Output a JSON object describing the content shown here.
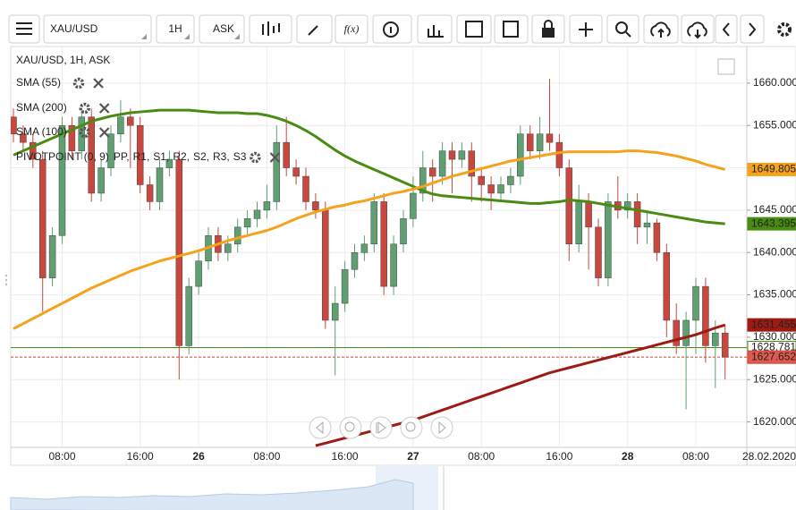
{
  "toolbar": {
    "symbol": "XAU/USD",
    "interval": "1H",
    "price_type": "ASK",
    "function_button": "f(x)"
  },
  "chart_data": {
    "type": "candlestick",
    "title": "XAU/USD, 1H, ASK",
    "categories": [
      null,
      null,
      null,
      null,
      null,
      "08:00",
      null,
      null,
      null,
      null,
      null,
      null,
      null,
      "16:00",
      null,
      null,
      null,
      null,
      null,
      "26",
      null,
      null,
      null,
      null,
      null,
      null,
      "08:00",
      null,
      null,
      null,
      null,
      null,
      null,
      null,
      "16:00",
      null,
      null,
      null,
      null,
      null,
      null,
      "27",
      null,
      null,
      null,
      null,
      null,
      null,
      "08:00",
      null,
      null,
      null,
      null,
      null,
      null,
      null,
      "16:00",
      null,
      null,
      null,
      null,
      null,
      null,
      "28",
      null,
      null,
      null,
      null,
      null,
      null,
      "08:00",
      null,
      null,
      null
    ],
    "date_label": "28.02.2020",
    "open": [
      1656,
      1654,
      1653,
      1651,
      1637,
      1642,
      1655,
      1652,
      1656,
      1647,
      1650,
      1654,
      1656,
      1655,
      1648,
      1646,
      1650,
      1651,
      1629,
      1636,
      1639,
      1642,
      1640,
      1641,
      1643,
      1644,
      1645,
      1646,
      1653,
      1650,
      1649,
      1646,
      1645,
      1632,
      1634,
      1638,
      1640,
      1641,
      1646,
      1636,
      1641,
      1644,
      1647,
      1650,
      1649,
      1652,
      1651,
      1652,
      1649,
      1648,
      1647,
      1648,
      1649,
      1654,
      1652,
      1654,
      1653,
      1650,
      1641,
      1646,
      1643,
      1637,
      1646,
      1645,
      1646,
      1643,
      1643.5,
      1640,
      1632,
      1629,
      1632,
      1636,
      1629,
      1630.5
    ],
    "high": [
      1657,
      1655,
      1654,
      1652,
      1643,
      1656,
      1656,
      1657,
      1657,
      1651,
      1655,
      1658,
      1657,
      1656,
      1649,
      1651,
      1652,
      1652,
      1637,
      1640,
      1643,
      1643,
      1642,
      1644,
      1645,
      1646,
      1648,
      1655,
      1656,
      1651,
      1650,
      1647,
      1646,
      1636,
      1639,
      1641,
      1642,
      1647,
      1647,
      1642,
      1645,
      1649,
      1652,
      1651,
      1653,
      1653,
      1653,
      1653,
      1650,
      1649,
      1649,
      1650,
      1655,
      1655,
      1656,
      1660.5,
      1654,
      1651,
      1648,
      1647,
      1644,
      1647,
      1649,
      1647,
      1647,
      1645,
      1644,
      1641,
      1634,
      1633,
      1637,
      1637,
      1632,
      1631.5
    ],
    "low": [
      1653,
      1652,
      1650,
      1633,
      1636,
      1641,
      1651,
      1651,
      1646,
      1646,
      1649,
      1653,
      1650,
      1647,
      1645,
      1645,
      1649,
      1625,
      1628,
      1635,
      1638,
      1639,
      1639,
      1640,
      1642,
      1643,
      1644,
      1645,
      1649,
      1648,
      1645,
      1644,
      1631,
      1625.5,
      1633,
      1637,
      1639,
      1640,
      1635,
      1635,
      1640,
      1643,
      1646,
      1646,
      1648,
      1647,
      1650,
      1646,
      1646,
      1645,
      1646,
      1647,
      1648,
      1651,
      1651,
      1652,
      1649,
      1639,
      1640,
      1638,
      1636,
      1636,
      1644,
      1644,
      1641,
      1641,
      1639,
      1630,
      1628,
      1621.5,
      1628,
      1627,
      1624,
      1625
    ],
    "close": [
      1654,
      1653,
      1651,
      1637,
      1642,
      1655,
      1652,
      1656,
      1647,
      1650,
      1654,
      1656,
      1655,
      1648,
      1646,
      1650,
      1651,
      1629,
      1636,
      1639,
      1642,
      1640,
      1641,
      1643,
      1644,
      1645,
      1646,
      1653,
      1650,
      1649,
      1646,
      1645,
      1632,
      1634,
      1638,
      1640,
      1641,
      1646,
      1636,
      1641,
      1644,
      1647,
      1650,
      1649,
      1652,
      1651,
      1652,
      1649,
      1648,
      1647,
      1648,
      1649,
      1654,
      1652,
      1654,
      1653,
      1650,
      1641,
      1646,
      1643,
      1637,
      1646,
      1645,
      1646,
      1643,
      1643.5,
      1640,
      1632,
      1629,
      1632,
      1636,
      1629,
      1630.5,
      1627.652
    ],
    "up_color": "#5f9f72",
    "down_color": "#c8473e",
    "overlays": [
      {
        "name": "SMA (55)",
        "color": "#4a8c12",
        "values": [
          1651.5,
          1652,
          1652.5,
          1653,
          1653.5,
          1654,
          1654.5,
          1655,
          1655.5,
          1655.8,
          1656.1,
          1656.3,
          1656.5,
          1656.6,
          1656.7,
          1656.8,
          1656.8,
          1656.8,
          1656.8,
          1656.7,
          1656.6,
          1656.5,
          1656.5,
          1656.5,
          1656.4,
          1656.4,
          1656.2,
          1655.9,
          1655.5,
          1655,
          1654.4,
          1653.7,
          1652.9,
          1652.1,
          1651.4,
          1650.8,
          1650.3,
          1649.8,
          1649.3,
          1648.8,
          1648.3,
          1647.8,
          1647.3,
          1646.9,
          1646.7,
          1646.6,
          1646.5,
          1646.4,
          1646.3,
          1646.2,
          1646.1,
          1646,
          1645.9,
          1645.8,
          1645.8,
          1645.9,
          1646,
          1646.2,
          1646.1,
          1646,
          1645.8,
          1645.6,
          1645.4,
          1645.2,
          1645,
          1644.8,
          1644.6,
          1644.4,
          1644.2,
          1644,
          1643.8,
          1643.6,
          1643.5,
          1643.395
        ]
      },
      {
        "name": "SMA (200)",
        "color": "#9e1b14",
        "values": [
          null,
          null,
          null,
          null,
          null,
          null,
          null,
          null,
          null,
          null,
          null,
          null,
          null,
          null,
          null,
          null,
          null,
          null,
          null,
          null,
          null,
          null,
          null,
          null,
          null,
          null,
          null,
          null,
          null,
          null,
          null,
          1617.2,
          1617.5,
          1617.8,
          1618.1,
          1618.4,
          1618.7,
          1619,
          1619.3,
          1619.6,
          1619.9,
          1620.2,
          1620.6,
          1621,
          1621.4,
          1621.8,
          1622.2,
          1622.6,
          1623,
          1623.4,
          1623.8,
          1624.2,
          1624.6,
          1625,
          1625.4,
          1625.8,
          1626.1,
          1626.4,
          1626.7,
          1627,
          1627.3,
          1627.6,
          1627.9,
          1628.2,
          1628.5,
          1628.8,
          1629.1,
          1629.4,
          1629.7,
          1630,
          1630.3,
          1630.7,
          1631.1,
          1631.455
        ]
      },
      {
        "name": "SMA (100)",
        "color": "#f5a21c",
        "values": [
          1631,
          1631.6,
          1632.2,
          1632.8,
          1633.4,
          1634,
          1634.6,
          1635.2,
          1635.8,
          1636.3,
          1636.8,
          1637.3,
          1637.8,
          1638.2,
          1638.6,
          1639,
          1639.3,
          1639.6,
          1639.9,
          1640.2,
          1640.6,
          1641,
          1641.4,
          1641.7,
          1642,
          1642.3,
          1642.6,
          1643,
          1643.5,
          1644,
          1644.4,
          1644.8,
          1645.1,
          1645.4,
          1645.6,
          1645.9,
          1646.1,
          1646.4,
          1646.7,
          1647,
          1647.2,
          1647.5,
          1647.8,
          1648.2,
          1648.6,
          1649,
          1649.3,
          1649.6,
          1649.9,
          1650.2,
          1650.5,
          1650.8,
          1651,
          1651.2,
          1651.4,
          1651.6,
          1651.8,
          1651.9,
          1651.9,
          1651.9,
          1651.9,
          1651.9,
          1651.9,
          1652,
          1652,
          1651.9,
          1651.8,
          1651.6,
          1651.4,
          1651.1,
          1650.8,
          1650.4,
          1650.1,
          1649.805
        ]
      }
    ],
    "pivot": {
      "name": "PIVOTPOINT (0, 9)",
      "parts": [
        {
          "text": "PP,",
          "color": "#3a7bd5"
        },
        {
          "text": "R1,",
          "color": "#3c9a2e"
        },
        {
          "text": "S1,",
          "color": "#d2261d"
        },
        {
          "text": "R2,",
          "color": "#e0321f"
        },
        {
          "text": "S2,",
          "color": "#f07c18"
        },
        {
          "text": "R3,",
          "color": "#f0a418"
        },
        {
          "text": "S3",
          "color": "#f2c418"
        }
      ]
    },
    "price_tags": [
      {
        "value": 1649.805,
        "color": "#f5a21c",
        "text_color": "#222222",
        "line": "none"
      },
      {
        "value": 1643.395,
        "color": "#4a8c12",
        "text_color": "#ffffff",
        "line": "none"
      },
      {
        "value": 1631.455,
        "color": "#9e1b14",
        "text_color": "#ffffff",
        "line": "none"
      },
      {
        "value": 1628.781,
        "color": "#ffffff",
        "text_color": "#2b6e12",
        "line": "solid",
        "line_color": "#4a8c12"
      },
      {
        "value": 1627.652,
        "color": "#e05a4f",
        "text_color": "#ffffff",
        "line": "dashed",
        "line_color": "#d33c33"
      }
    ],
    "ylim": [
      1617,
      1664
    ],
    "yticks": [
      {
        "value": 1620,
        "label": "1620.000"
      },
      {
        "value": 1625,
        "label": "1625.000"
      },
      {
        "value": 1630,
        "label": "1630.000"
      },
      {
        "value": 1635,
        "label": "1635.000"
      },
      {
        "value": 1640,
        "label": "1640.000"
      },
      {
        "value": 1645,
        "label": "1645.000"
      },
      {
        "value": 1650,
        "label": "1650.000"
      },
      {
        "value": 1655,
        "label": "1655.000"
      },
      {
        "value": 1660,
        "label": "1660.000"
      }
    ],
    "grid": true
  }
}
